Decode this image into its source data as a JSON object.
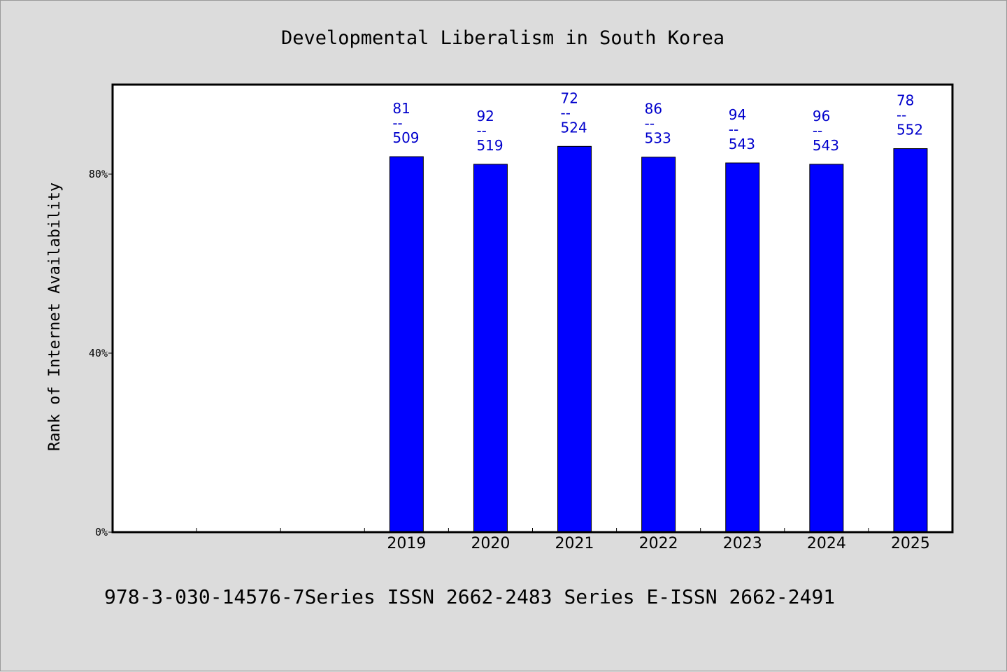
{
  "chart_data": {
    "type": "bar",
    "title": "Developmental Liberalism in South Korea",
    "ylabel": "Rank of Internet Availability",
    "xlabel": "",
    "categories": [
      "",
      "",
      "",
      "2019",
      "2020",
      "2021",
      "2022",
      "2023",
      "2024",
      "2025"
    ],
    "values": [
      null,
      null,
      null,
      83.9,
      82.2,
      86.2,
      83.8,
      82.5,
      82.2,
      85.7
    ],
    "data_labels": [
      null,
      null,
      null,
      [
        "81",
        "--",
        "509"
      ],
      [
        "92",
        "--",
        "519"
      ],
      [
        "72",
        "--",
        "524"
      ],
      [
        "86",
        "--",
        "533"
      ],
      [
        "94",
        "--",
        "543"
      ],
      [
        "96",
        "--",
        "543"
      ],
      [
        "78",
        "--",
        "552"
      ]
    ],
    "ylim": [
      0,
      100
    ],
    "yticks": [
      0,
      40,
      80
    ],
    "ytick_labels": [
      "0%",
      "40%",
      "80%"
    ],
    "bar_color": "#0000ff",
    "label_color": "#0000cc",
    "grid": false,
    "legend": "none"
  },
  "footer": "978-3-030-14576-7Series ISSN 2662-2483 Series E-ISSN 2662-2491"
}
